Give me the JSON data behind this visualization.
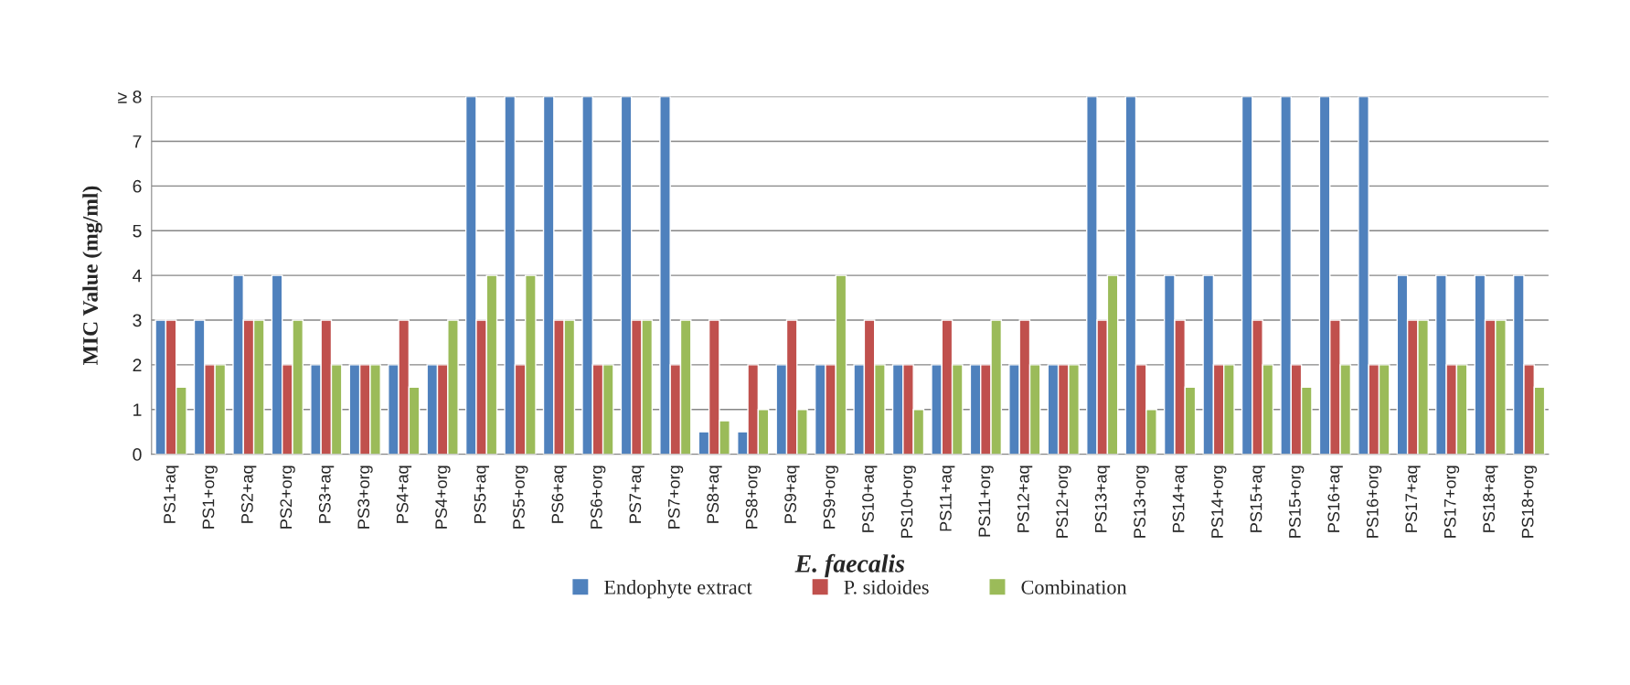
{
  "chart_data": {
    "type": "bar",
    "xlabel": "E. faecalis",
    "ylabel": "MIC Value (mg/ml)",
    "categories": [
      "PS1+aq",
      "PS1+org",
      "PS2+aq",
      "PS2+org",
      "PS3+aq",
      "PS3+org",
      "PS4+aq",
      "PS4+org",
      "PS5+aq",
      "PS5+org",
      "PS6+aq",
      "PS6+org",
      "PS7+aq",
      "PS7+org",
      "PS8+aq",
      "PS8+org",
      "PS9+aq",
      "PS9+org",
      "PS10+aq",
      "PS10+org",
      "PS11+aq",
      "PS11+org",
      "PS12+aq",
      "PS12+org",
      "PS13+aq",
      "PS13+org",
      "PS14+aq",
      "PS14+org",
      "PS15+aq",
      "PS15+org",
      "PS16+aq",
      "PS16+org",
      "PS17+aq",
      "PS17+org",
      "PS18+aq",
      "PS18+org"
    ],
    "series": [
      {
        "name": "Endophyte extract",
        "color": "#4f81bd",
        "values": [
          3,
          3,
          4,
          4,
          2,
          2,
          2,
          2,
          8,
          8,
          8,
          8,
          8,
          8,
          0.5,
          0.5,
          2,
          2,
          2,
          2,
          2,
          2,
          2,
          2,
          8,
          8,
          4,
          4,
          8,
          8,
          8,
          8,
          4,
          4,
          4,
          4
        ]
      },
      {
        "name": "P. sidoides",
        "color": "#c0504d",
        "values": [
          3,
          2,
          3,
          2,
          3,
          2,
          3,
          2,
          3,
          2,
          3,
          2,
          3,
          2,
          3,
          2,
          3,
          2,
          3,
          2,
          3,
          2,
          3,
          2,
          3,
          2,
          3,
          2,
          3,
          2,
          3,
          2,
          3,
          2,
          3,
          2
        ]
      },
      {
        "name": "Combination",
        "color": "#9bbb59",
        "values": [
          1.5,
          2,
          3,
          3,
          2,
          2,
          1.5,
          3,
          4,
          4,
          3,
          2,
          3,
          3,
          0.75,
          1,
          1,
          4,
          2,
          1,
          2,
          3,
          2,
          2,
          4,
          1,
          1.5,
          2,
          2,
          1.5,
          2,
          2,
          3,
          2,
          3,
          1.5
        ]
      }
    ],
    "ylim": [
      0,
      8
    ],
    "yticks": [
      0,
      1,
      2,
      3,
      4,
      5,
      6,
      7,
      {
        "value": 8,
        "label": "≥ 8"
      }
    ],
    "grid": "y",
    "legend": "bottom"
  }
}
